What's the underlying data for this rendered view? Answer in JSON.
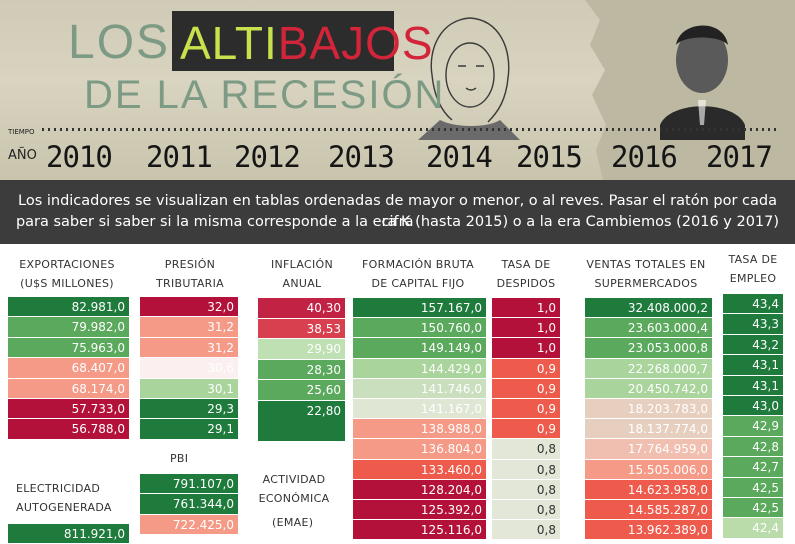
{
  "header": {
    "title_los": "LOS",
    "title_alti": "ALTI",
    "title_bajos": "BAJOS",
    "title_line2": "DE LA RECESIÓN",
    "tiempo_label": "TIEMPO",
    "ano_label": "AÑO",
    "years": [
      "2010",
      "2011",
      "2012",
      "2013",
      "2014",
      "2015",
      "2016",
      "2017"
    ]
  },
  "banner": {
    "line1": "Los indicadores se visualizan en tablas ordenadas de mayor o menor, o al reves. Pasar el ratón por cada cifra",
    "line2": "para saber si saber si la misma corresponde a la era K (hasta 2015) o a la era Cambiemos (2016 y 2017)"
  },
  "colors": {
    "green_dark": "#1e7b3c",
    "green_mid": "#5aa95c",
    "green_light": "#a9d49c",
    "red_dark": "#b3113a",
    "red_mid": "#ee5a4b",
    "salmon": "#f59a86",
    "neutral": "#e2e7d7"
  },
  "chart_data": [
    {
      "type": "table",
      "title": "EXPORTACIONES (U$S MILLONES)",
      "values": [
        "82.981,0",
        "79.982,0",
        "75.963,0",
        "68.407,0",
        "68.174,0",
        "57.733,0",
        "56.788,0"
      ]
    },
    {
      "type": "table",
      "title": "PRESIÓN TRIBUTARIA",
      "values": [
        "32,0",
        "31,2",
        "31,2",
        "30,6",
        "30,1",
        "29,3",
        "29,1"
      ]
    },
    {
      "type": "table",
      "title": "INFLACIÓN ANUAL",
      "values": [
        "40,30",
        "38,53",
        "29,90",
        "28,30",
        "25,60",
        "22,80",
        ""
      ]
    },
    {
      "type": "table",
      "title": "FORMACIÓN BRUTA DE CAPITAL FIJO",
      "values": [
        "157.167,0",
        "150.760,0",
        "149.149,0",
        "144.429,0",
        "141.746,0",
        "141.167,0",
        "138.988,0",
        "136.804,0",
        "133.460,0",
        "128.204,0",
        "125.392,0",
        "125.116,0"
      ]
    },
    {
      "type": "table",
      "title": "TASA DE DESPIDOS",
      "values": [
        "1,0",
        "1,0",
        "1,0",
        "0,9",
        "0,9",
        "0,9",
        "0,9",
        "0,8",
        "0,8",
        "0,8",
        "0,8",
        "0,8"
      ]
    },
    {
      "type": "table",
      "title": "VENTAS TOTALES EN SUPERMERCADOS",
      "values": [
        "32.408.000,2",
        "23.603.000,4",
        "23.053.000,8",
        "22.268.000,7",
        "20.450.742,0",
        "18.203.783,0",
        "18.137.774,0",
        "17.764.959,0",
        "15.505.006,0",
        "14.623.958,0",
        "14.585.287,0",
        "13.962.389,0"
      ]
    },
    {
      "type": "table",
      "title": "TASA DE EMPLEO",
      "values": [
        "43,4",
        "43,3",
        "43,2",
        "43,1",
        "43,1",
        "43,0",
        "42,9",
        "42,8",
        "42,7",
        "42,5",
        "42,5",
        "42,4"
      ]
    },
    {
      "type": "table",
      "title": "PBI",
      "values": [
        "791.107,0",
        "761.344,0",
        "722.425,0"
      ]
    },
    {
      "type": "table",
      "title": "ELECTRICIDAD AUTOGENERADA",
      "values": [
        "811.921,0"
      ]
    },
    {
      "type": "table",
      "title": "ACTIVIDAD ECONÓMICA",
      "subtitle": "(EMAE)",
      "values": []
    }
  ]
}
